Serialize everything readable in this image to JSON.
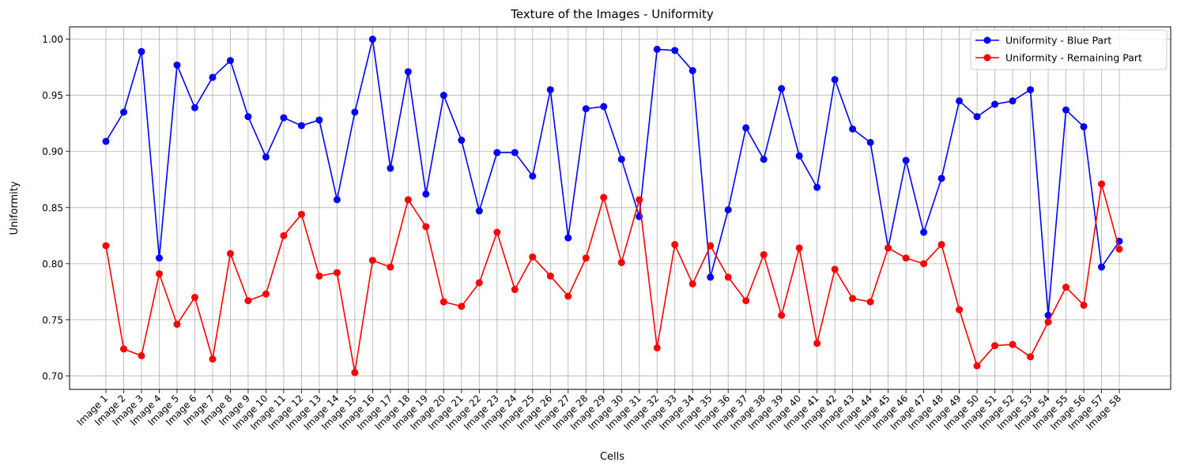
{
  "chart_data": {
    "type": "line",
    "title": "Texture of the Images - Uniformity",
    "xlabel": "Cells",
    "ylabel": "Uniformity",
    "ylim": [
      0.688,
      1.011
    ],
    "yticks": [
      0.7,
      0.75,
      0.8,
      0.85,
      0.9,
      0.95,
      1.0
    ],
    "ytick_labels": [
      "0.70",
      "0.75",
      "0.80",
      "0.85",
      "0.90",
      "0.95",
      "1.00"
    ],
    "grid": true,
    "legend_position": "top-right",
    "categories": [
      "Image 1",
      "Image 2",
      "Image 3",
      "Image 4",
      "Image 5",
      "Image 6",
      "Image 7",
      "Image 8",
      "Image 9",
      "Image 10",
      "Image 11",
      "Image 12",
      "Image 13",
      "Image 14",
      "Image 15",
      "Image 16",
      "Image 17",
      "Image 18",
      "Image 19",
      "Image 20",
      "Image 21",
      "Image 22",
      "Image 23",
      "Image 24",
      "Image 25",
      "Image 26",
      "Image 27",
      "Image 28",
      "Image 29",
      "Image 30",
      "Image 31",
      "Image 32",
      "Image 33",
      "Image 34",
      "Image 35",
      "Image 36",
      "Image 37",
      "Image 38",
      "Image 39",
      "Image 40",
      "Image 41",
      "Image 42",
      "Image 43",
      "Image 44",
      "Image 45",
      "Image 46",
      "Image 47",
      "Image 48",
      "Image 49",
      "Image 50",
      "Image 51",
      "Image 52",
      "Image 53",
      "Image 54",
      "Image 55",
      "Image 56",
      "Image 57",
      "Image 58"
    ],
    "series": [
      {
        "name": "Uniformity - Blue Part",
        "color": "#0000ff",
        "values": [
          0.909,
          0.935,
          0.989,
          0.805,
          0.977,
          0.939,
          0.966,
          0.981,
          0.931,
          0.895,
          0.93,
          0.923,
          0.928,
          0.857,
          0.935,
          1.0,
          0.885,
          0.971,
          0.862,
          0.95,
          0.91,
          0.847,
          0.899,
          0.899,
          0.878,
          0.955,
          0.823,
          0.938,
          0.94,
          0.893,
          0.842,
          0.991,
          0.99,
          0.972,
          0.788,
          0.848,
          0.921,
          0.893,
          0.956,
          0.896,
          0.868,
          0.964,
          0.92,
          0.908,
          0.814,
          0.892,
          0.828,
          0.876,
          0.945,
          0.931,
          0.942,
          0.945,
          0.955,
          0.754,
          0.937,
          0.922,
          0.797,
          0.82
        ]
      },
      {
        "name": "Uniformity - Remaining Part",
        "color": "#ff0000",
        "values": [
          0.816,
          0.724,
          0.718,
          0.791,
          0.746,
          0.77,
          0.715,
          0.809,
          0.767,
          0.773,
          0.825,
          0.844,
          0.789,
          0.792,
          0.703,
          0.803,
          0.797,
          0.857,
          0.833,
          0.766,
          0.762,
          0.783,
          0.828,
          0.777,
          0.806,
          0.789,
          0.771,
          0.805,
          0.859,
          0.801,
          0.857,
          0.725,
          0.817,
          0.782,
          0.816,
          0.788,
          0.767,
          0.808,
          0.754,
          0.814,
          0.729,
          0.795,
          0.769,
          0.766,
          0.814,
          0.805,
          0.8,
          0.817,
          0.759,
          0.709,
          0.727,
          0.728,
          0.717,
          0.748,
          0.779,
          0.763,
          0.871,
          0.813
        ]
      }
    ]
  }
}
